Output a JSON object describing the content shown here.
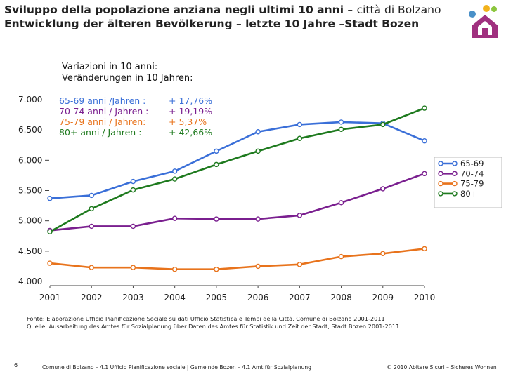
{
  "header": {
    "title_it_bold": "Sviluppo della popolazione anziana negli ultimi 10 anni –",
    "title_it_normal": "città di Bolzano",
    "title_de": "Entwicklung der älteren Bevölkerung – letzte 10 Jahre –Stadt Bozen"
  },
  "variations": {
    "heading_it": "Variazioni  in 10 anni:",
    "heading_de": "Veränderungen in 10 Jahren:",
    "rows": [
      {
        "label": "65-69 anni /Jahren :",
        "value": "+ 17,76%",
        "color": "#3a6fd8"
      },
      {
        "label": "70-74 anni / Jahren :",
        "value": "+ 19,19%",
        "color": "#7a1f8f"
      },
      {
        "label": "75-79 anni / Jahren:",
        "value": "+ 5,37%",
        "color": "#e8731c"
      },
      {
        "label": "80+ anni / Jahren :",
        "value": "+ 42,66%",
        "color": "#1e7a1e"
      }
    ]
  },
  "chart_data": {
    "type": "line",
    "x": [
      "2001",
      "2002",
      "2003",
      "2004",
      "2005",
      "2006",
      "2007",
      "2008",
      "2009",
      "2010"
    ],
    "ylim": [
      4000,
      7000
    ],
    "yticks": [
      "4.000",
      "4.500",
      "5.000",
      "5.500",
      "6.000",
      "6.500",
      "7.000"
    ],
    "yticks_values": [
      4000,
      4500,
      5000,
      5500,
      6000,
      6500,
      7000
    ],
    "legend_position": "right",
    "series": [
      {
        "name": "65-69",
        "color": "#3a6fd8",
        "values": [
          5370,
          5420,
          5650,
          5820,
          6150,
          6470,
          6590,
          6630,
          6610,
          6320
        ]
      },
      {
        "name": "70-74",
        "color": "#7a1f8f",
        "values": [
          4840,
          4910,
          4910,
          5040,
          5030,
          5030,
          5090,
          5300,
          5530,
          5780
        ]
      },
      {
        "name": "75-79",
        "color": "#e8731c",
        "values": [
          4300,
          4230,
          4230,
          4200,
          4200,
          4250,
          4280,
          4410,
          4460,
          4540
        ]
      },
      {
        "name": "80+",
        "color": "#1e7a1e",
        "values": [
          4820,
          5200,
          5510,
          5690,
          5930,
          6150,
          6360,
          6510,
          6590,
          6860
        ]
      }
    ]
  },
  "source": {
    "line_it": "Fonte: Elaborazione Ufficio Pianificazione Sociale su dati Ufficio Statistica e Tempi della Città, Comune di Bolzano 2001-2011",
    "line_de": "Quelle: Ausarbeitung des Amtes für Sozialplanung über Daten des Amtes für Statistik und Zeit der Stadt, Stadt Bozen 2001-2011"
  },
  "footer": {
    "page_number": "6",
    "center": "Comune di Bolzano – 4.1 Ufficio Pianificazione sociale | Gemeinde Bozen – 4.1 Amt für Sozialplanung",
    "right": "© 2010 Abitare Sicuri – Sicheres Wohnen"
  }
}
